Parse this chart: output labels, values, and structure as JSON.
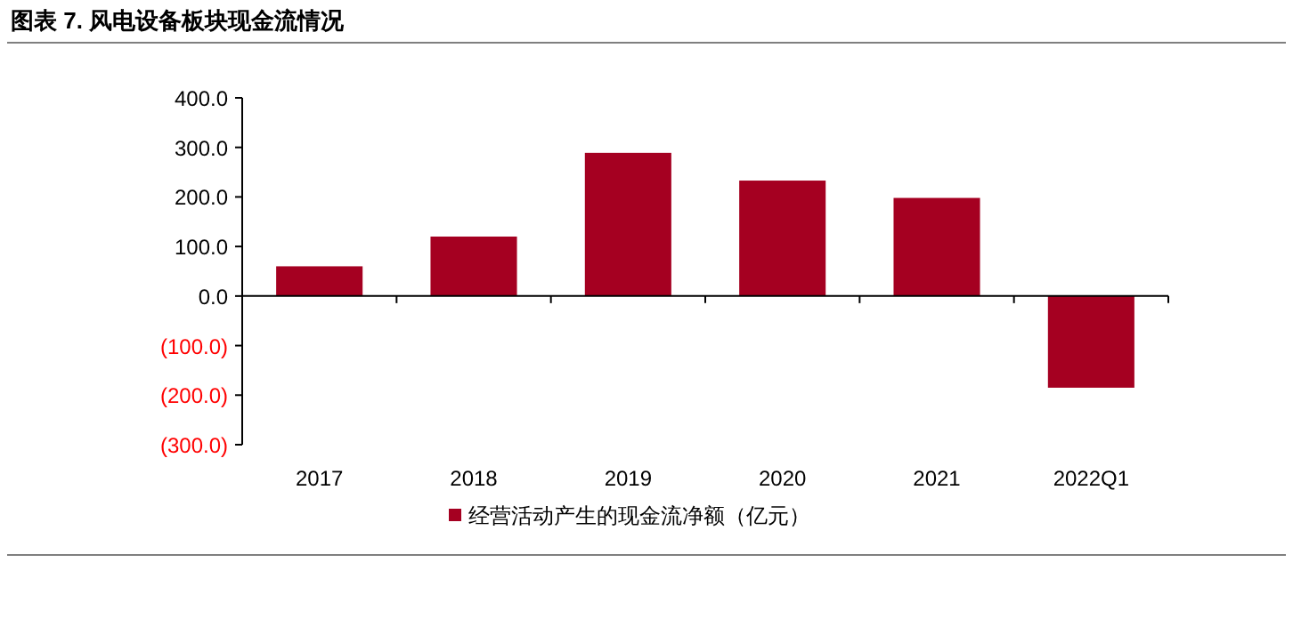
{
  "chart_data": {
    "type": "bar",
    "title": "图表 7. 风电设备板块现金流情况",
    "categories": [
      "2017",
      "2018",
      "2019",
      "2020",
      "2021",
      "2022Q1"
    ],
    "series": [
      {
        "name": "经营活动产生的现金流净额（亿元）",
        "color": "#a50021",
        "values": [
          60,
          120,
          289,
          233,
          198,
          -185
        ]
      }
    ],
    "ylim": [
      -300,
      400
    ],
    "yticks": [
      {
        "value": 400,
        "label": "400.0"
      },
      {
        "value": 300,
        "label": "300.0"
      },
      {
        "value": 200,
        "label": "200.0"
      },
      {
        "value": 100,
        "label": "100.0"
      },
      {
        "value": 0,
        "label": "0.0"
      },
      {
        "value": -100,
        "label": "(100.0)"
      },
      {
        "value": -200,
        "label": "(200.0)"
      },
      {
        "value": -300,
        "label": "(300.0)"
      }
    ],
    "legend": "bottom"
  }
}
